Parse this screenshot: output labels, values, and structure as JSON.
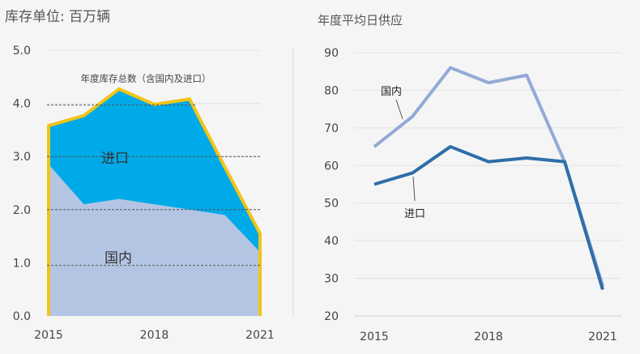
{
  "chart_data": [
    {
      "type": "area",
      "title": "库存单位: 百万辆",
      "categories": [
        "2015",
        "2018",
        "2021"
      ],
      "x": [
        2015,
        2016,
        2017,
        2018,
        2019,
        2020,
        2021
      ],
      "ylim": [
        0,
        5
      ],
      "yticks": [
        "0.0",
        "1.0",
        "2.0",
        "3.0",
        "4.0",
        "5.0"
      ],
      "series": [
        {
          "name": "国内",
          "values": [
            2.85,
            2.1,
            2.2,
            2.1,
            2.0,
            1.9,
            1.2
          ],
          "color": "#b4c5e4"
        },
        {
          "name": "进口",
          "values": [
            0.73,
            1.67,
            2.07,
            1.88,
            2.08,
            0.9,
            0.35
          ],
          "color": "#00a9e7"
        }
      ],
      "total": {
        "name": "年度库存总数（含国内及进口）",
        "values": [
          3.58,
          3.77,
          4.27,
          3.98,
          4.08,
          2.8,
          1.55
        ],
        "color": "#f2c417"
      },
      "dashed_lines": [
        0.95,
        2.0,
        3.0,
        3.97
      ],
      "labels": {
        "total": "年度库存总数（含国内及进口）",
        "import": "进口",
        "domestic": "国内"
      }
    },
    {
      "type": "line",
      "title": "年度平均日供应",
      "categories": [
        "2015",
        "2018",
        "2021"
      ],
      "x": [
        2015,
        2016,
        2017,
        2018,
        2019,
        2020,
        2021
      ],
      "ylim": [
        20,
        90
      ],
      "yticks": [
        "20",
        "30",
        "40",
        "50",
        "60",
        "70",
        "80",
        "90"
      ],
      "series": [
        {
          "name": "国内",
          "values": [
            65,
            73,
            86,
            82,
            84,
            61,
            28
          ],
          "color": "#93a9d6"
        },
        {
          "name": "进口",
          "values": [
            55,
            58,
            65,
            61,
            62,
            61,
            27
          ],
          "color": "#2f6ea8"
        }
      ]
    }
  ]
}
